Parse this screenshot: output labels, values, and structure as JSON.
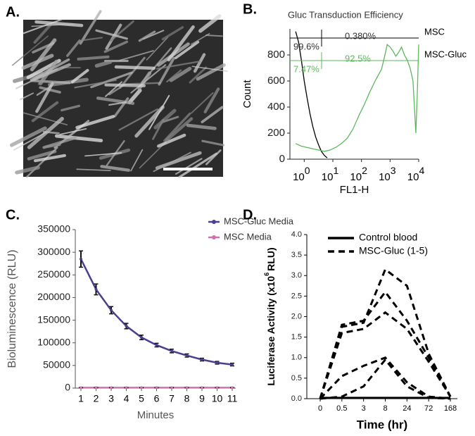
{
  "panel_a": {
    "label": "A."
  },
  "chart_data": [
    {
      "type": "line",
      "panel_label": "B.",
      "title": "Gluc Transduction Efficiency",
      "xlabel": "FL1-H",
      "ylabel": "Count",
      "x_tick_base": "10",
      "xlim": [
        -0.5,
        4
      ],
      "xticks": [
        0,
        1,
        2,
        3,
        4
      ],
      "ylim": [
        0,
        1000
      ],
      "yticks": [
        0,
        200,
        400,
        600,
        800
      ],
      "series": [
        {
          "name": "MSC",
          "color": "#000000",
          "gate_labels": [
            "99.6%",
            "0.380%"
          ],
          "x": [
            -0.3,
            -0.2,
            -0.1,
            0,
            0.1,
            0.2,
            0.3,
            0.4,
            0.5,
            0.6,
            0.7,
            0.8
          ],
          "values": [
            980,
            900,
            760,
            600,
            470,
            350,
            250,
            170,
            110,
            60,
            30,
            10
          ]
        },
        {
          "name": "MSC-Gluc",
          "color": "#5cb85c",
          "gate_labels": [
            "7.47%",
            "92.5%"
          ],
          "x": [
            -0.3,
            -0.1,
            0.1,
            0.3,
            0.5,
            0.7,
            0.9,
            1.1,
            1.3,
            1.5,
            1.7,
            1.9,
            2.1,
            2.3,
            2.5,
            2.6,
            2.7,
            2.8,
            2.9,
            3.0,
            3.1,
            3.2,
            3.3,
            3.4,
            3.5,
            3.6,
            3.7,
            3.8,
            3.85,
            3.9,
            3.95,
            4.0
          ],
          "values": [
            120,
            100,
            90,
            80,
            70,
            60,
            70,
            90,
            120,
            160,
            230,
            330,
            420,
            520,
            610,
            650,
            690,
            780,
            880,
            860,
            830,
            790,
            820,
            860,
            800,
            760,
            700,
            600,
            400,
            200,
            500,
            880
          ]
        }
      ]
    },
    {
      "type": "line",
      "panel_label": "C.",
      "ylabel": "Bioluminescence (RLU)",
      "xlabel": "Minutes",
      "categories": [
        "1",
        "2",
        "3",
        "4",
        "5",
        "6",
        "7",
        "8",
        "9",
        "10",
        "11"
      ],
      "ylim": [
        0,
        350000
      ],
      "yticks": [
        0,
        50000,
        100000,
        150000,
        200000,
        250000,
        300000,
        350000
      ],
      "legend": "upper right",
      "series": [
        {
          "name": "MSC-Gluc Media",
          "color": "#4b3f8f",
          "values": [
            285000,
            218000,
            172000,
            137000,
            112000,
            95000,
            82000,
            72000,
            63000,
            56000,
            52000
          ],
          "errors": [
            18000,
            12000,
            8000,
            6000,
            5000,
            4000,
            4000,
            3500,
            3000,
            3000,
            3000
          ]
        },
        {
          "name": "MSC Media",
          "color": "#d070b0",
          "values": [
            1000,
            1000,
            1000,
            1000,
            1000,
            1000,
            1000,
            1000,
            1000,
            1000,
            1000
          ],
          "errors": [
            500,
            500,
            500,
            500,
            500,
            500,
            500,
            500,
            500,
            500,
            500
          ]
        }
      ]
    },
    {
      "type": "line",
      "panel_label": "D.",
      "ylabel": "Luciferase Activity (x10",
      "ylabel_sup": "6",
      "ylabel_end": "RLU)",
      "xlabel": "Time (hr)",
      "categories": [
        "0",
        "0.5",
        "3",
        "8",
        "24",
        "72",
        "168"
      ],
      "ylim": [
        0,
        4
      ],
      "yticks": [
        {
          "value": 0,
          "label": "0.0"
        },
        {
          "value": 0.5,
          "label": "0.5"
        },
        {
          "value": 1,
          "label": "1.0"
        },
        {
          "value": 1.5,
          "label": "1.5"
        },
        {
          "value": 2,
          "label": "2.0"
        },
        {
          "value": 2.5,
          "label": "2.5"
        },
        {
          "value": 3,
          "label": "3.0"
        },
        {
          "value": 3.5,
          "label": "3.5"
        },
        {
          "value": 4,
          "label": "4.0"
        }
      ],
      "series": [
        {
          "name": "Control blood",
          "color": "#000000",
          "dash": false,
          "lines": [
            [
              0.02,
              0.02,
              0.02,
              0.02,
              0.02,
              0.02,
              0.02
            ]
          ]
        },
        {
          "name": "MSC-Gluc (1-5)",
          "color": "#000000",
          "dash": true,
          "lines": [
            [
              0,
              1.75,
              1.85,
              3.15,
              2.75,
              1.1,
              0.05
            ],
            [
              0,
              1.8,
              1.9,
              2.6,
              1.9,
              1.0,
              0.05
            ],
            [
              0,
              1.6,
              1.7,
              2.1,
              1.7,
              0.9,
              0.05
            ],
            [
              0,
              0.55,
              0.8,
              1.0,
              0.4,
              0.05,
              0
            ],
            [
              0,
              0.05,
              0.3,
              0.95,
              0.3,
              0.02,
              0
            ]
          ]
        }
      ]
    }
  ]
}
